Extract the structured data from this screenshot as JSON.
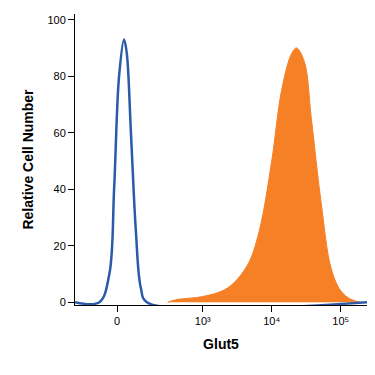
{
  "chart_data": {
    "type": "line",
    "x_label": "Glut5",
    "y_label": "Relative Cell Number",
    "xlim": [
      -220,
      240000
    ],
    "ylim": [
      -1,
      102
    ],
    "xticks": [
      {
        "value": 0,
        "label": "0"
      },
      {
        "value": 1000,
        "label": "10³"
      },
      {
        "value": 10000,
        "label": "10⁴"
      },
      {
        "value": 100000,
        "label": "10⁵"
      }
    ],
    "yticks": [
      0,
      20,
      40,
      60,
      80,
      100
    ],
    "grid": false,
    "series": [
      {
        "type": "line",
        "color": "#2b5ba8",
        "x": [
          -220,
          -72,
          -30,
          -11.5,
          7.6,
          27,
          38,
          55,
          77,
          101,
          134,
          240000
        ],
        "values": [
          0,
          0,
          10,
          40,
          80,
          93,
          88,
          60,
          25,
          5,
          0,
          0
        ]
      },
      {
        "type": "area",
        "color": "#f58025",
        "x": [
          300,
          435,
          1000,
          2280,
          4420,
          6560,
          10000,
          13900,
          19400,
          22900,
          29800,
          37500,
          52100,
          72500,
          100000,
          140000,
          193000
        ],
        "values": [
          0,
          1,
          2,
          5,
          13,
          25,
          50,
          75,
          88,
          90,
          85,
          65,
          35,
          12,
          4,
          1,
          0
        ]
      }
    ]
  }
}
